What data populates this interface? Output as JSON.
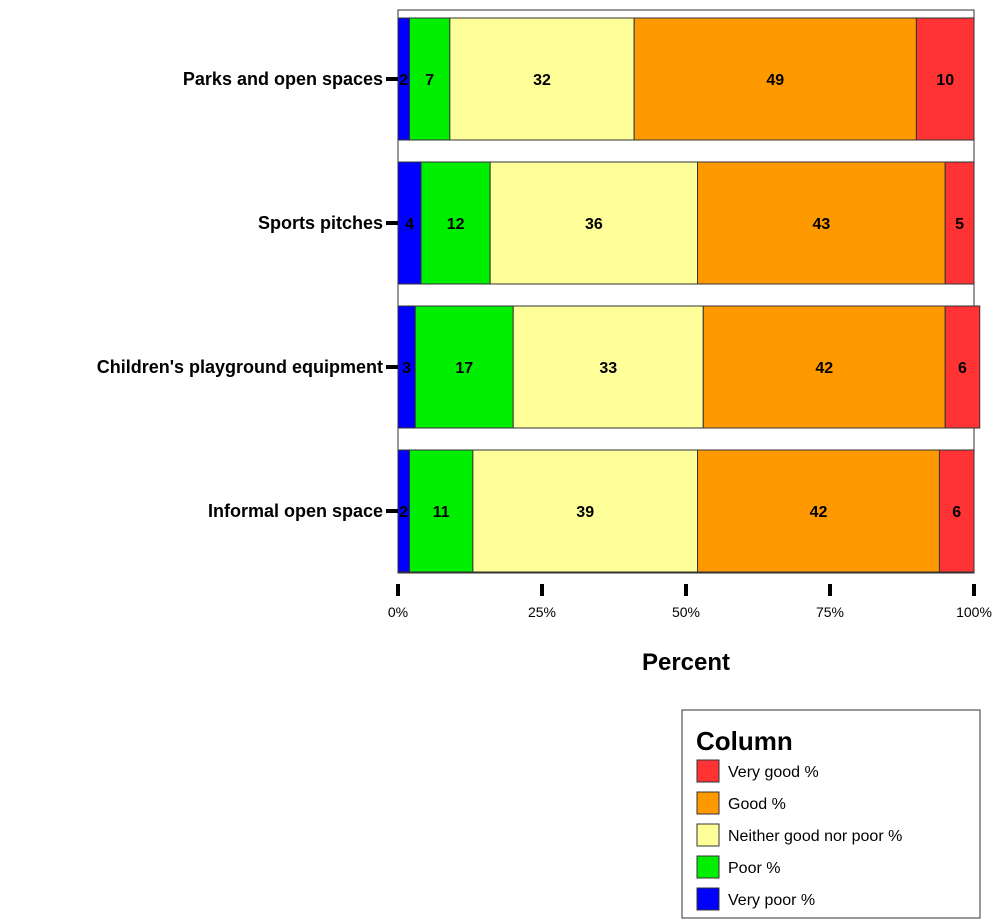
{
  "chart_data": {
    "type": "bar",
    "orientation": "horizontal",
    "stacked": true,
    "categories": [
      "Parks and open spaces",
      "Sports pitches",
      "Children's playground equipment",
      "Informal open space"
    ],
    "series": [
      {
        "name": "Very poor %",
        "color": "#0000ff",
        "values": [
          2,
          4,
          3,
          2
        ]
      },
      {
        "name": "Poor %",
        "color": "#00ee00",
        "values": [
          7,
          12,
          17,
          11
        ]
      },
      {
        "name": "Neither good nor poor %",
        "color": "#ffff99",
        "values": [
          32,
          36,
          33,
          39
        ]
      },
      {
        "name": "Good %",
        "color": "#ff9900",
        "values": [
          49,
          43,
          42,
          42
        ]
      },
      {
        "name": "Very good %",
        "color": "#ff3333",
        "values": [
          10,
          5,
          6,
          6
        ]
      }
    ],
    "xlabel": "Percent",
    "ylabel": "",
    "xlim": [
      0,
      100
    ],
    "xticks": [
      "0%",
      "25%",
      "50%",
      "75%",
      "100%"
    ],
    "grid": false,
    "legend": {
      "title": "Column",
      "placement": "bottom-right",
      "order": [
        "Very good %",
        "Good %",
        "Neither good nor poor %",
        "Poor %",
        "Very poor %"
      ]
    }
  }
}
